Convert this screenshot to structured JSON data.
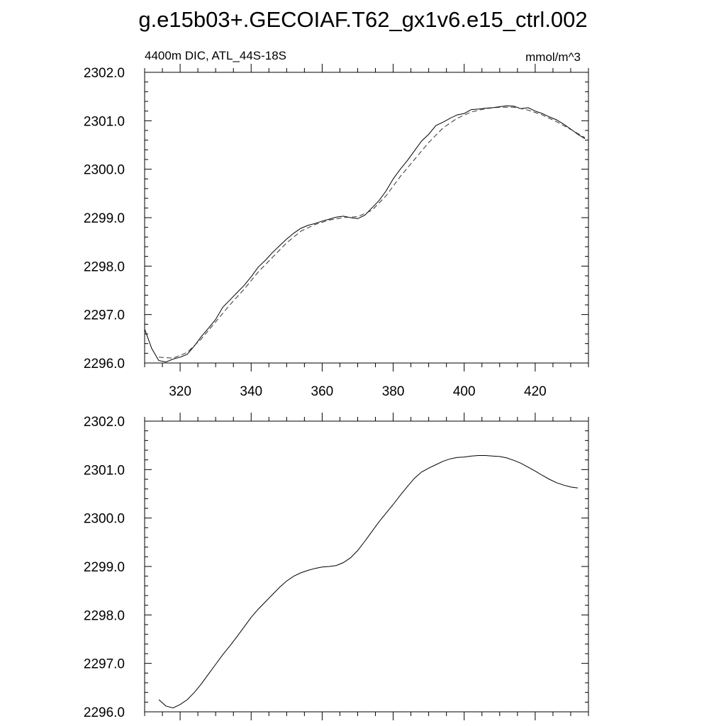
{
  "figure": {
    "title": "g.e15b03+.GECOIAF.T62_gx1v6.e15_ctrl.002"
  },
  "chart_data": [
    {
      "type": "line",
      "subtitle_left": "4400m DIC, ATL_44S-18S",
      "subtitle_right": "mmol/m^3",
      "xlim": [
        310,
        435
      ],
      "ylim": [
        2296.0,
        2302.0
      ],
      "x_ticks": [
        320,
        340,
        360,
        380,
        400,
        420
      ],
      "y_ticks": [
        "2296.0",
        "2297.0",
        "2298.0",
        "2299.0",
        "2300.0",
        "2301.0",
        "2302.0"
      ],
      "series": [
        {
          "style": "solid",
          "x": [
            310,
            312,
            314,
            316,
            318,
            320,
            322,
            324,
            326,
            328,
            330,
            332,
            334,
            336,
            338,
            340,
            342,
            344,
            346,
            348,
            350,
            352,
            354,
            356,
            358,
            360,
            362,
            364,
            366,
            368,
            370,
            372,
            374,
            376,
            378,
            380,
            382,
            384,
            386,
            388,
            390,
            392,
            394,
            396,
            398,
            400,
            402,
            404,
            406,
            408,
            410,
            412,
            414,
            416,
            418,
            420,
            422,
            424,
            426,
            428,
            430,
            432,
            434
          ],
          "y": [
            2296.7,
            2296.3,
            2296.05,
            2296.02,
            2296.08,
            2296.12,
            2296.18,
            2296.35,
            2296.55,
            2296.72,
            2296.9,
            2297.15,
            2297.3,
            2297.45,
            2297.6,
            2297.78,
            2297.98,
            2298.12,
            2298.28,
            2298.42,
            2298.56,
            2298.68,
            2298.78,
            2298.84,
            2298.88,
            2298.93,
            2298.97,
            2299.01,
            2299.03,
            2299.0,
            2298.98,
            2299.05,
            2299.2,
            2299.35,
            2299.55,
            2299.8,
            2300.0,
            2300.18,
            2300.38,
            2300.58,
            2300.72,
            2300.9,
            2300.97,
            2301.05,
            2301.12,
            2301.15,
            2301.23,
            2301.24,
            2301.26,
            2301.27,
            2301.29,
            2301.31,
            2301.3,
            2301.25,
            2301.27,
            2301.2,
            2301.15,
            2301.08,
            2301.02,
            2300.93,
            2300.83,
            2300.72,
            2300.63
          ]
        },
        {
          "style": "dashed",
          "x": [
            314,
            318,
            322,
            326,
            330,
            334,
            338,
            342,
            346,
            350,
            354,
            358,
            362,
            366,
            370,
            374,
            378,
            382,
            386,
            390,
            394,
            398,
            402,
            406,
            410,
            414,
            418,
            422,
            426,
            430,
            434
          ],
          "y": [
            2296.12,
            2296.1,
            2296.22,
            2296.5,
            2296.85,
            2297.2,
            2297.52,
            2297.88,
            2298.18,
            2298.48,
            2298.72,
            2298.86,
            2298.95,
            2299.0,
            2299.02,
            2299.15,
            2299.45,
            2299.85,
            2300.2,
            2300.55,
            2300.85,
            2301.05,
            2301.18,
            2301.25,
            2301.28,
            2301.28,
            2301.22,
            2301.12,
            2300.98,
            2300.82,
            2300.65
          ]
        }
      ]
    },
    {
      "type": "line",
      "xlim": [
        310,
        435
      ],
      "ylim": [
        2296.0,
        2302.0
      ],
      "y_ticks": [
        "2296.0",
        "2297.0",
        "2298.0",
        "2299.0",
        "2300.0",
        "2301.0",
        "2302.0"
      ],
      "series": [
        {
          "style": "solid",
          "x": [
            314,
            316,
            318,
            320,
            322,
            324,
            326,
            328,
            330,
            332,
            334,
            336,
            338,
            340,
            342,
            344,
            346,
            348,
            350,
            352,
            354,
            356,
            358,
            360,
            362,
            364,
            366,
            368,
            370,
            372,
            374,
            376,
            378,
            380,
            382,
            384,
            386,
            388,
            390,
            392,
            394,
            396,
            398,
            400,
            402,
            404,
            406,
            408,
            410,
            412,
            414,
            416,
            418,
            420,
            422,
            424,
            426,
            428,
            430,
            432
          ],
          "y": [
            2296.25,
            2296.12,
            2296.08,
            2296.15,
            2296.25,
            2296.4,
            2296.58,
            2296.78,
            2296.98,
            2297.18,
            2297.36,
            2297.55,
            2297.75,
            2297.95,
            2298.12,
            2298.27,
            2298.42,
            2298.57,
            2298.7,
            2298.8,
            2298.87,
            2298.92,
            2298.96,
            2298.99,
            2299.0,
            2299.02,
            2299.08,
            2299.18,
            2299.33,
            2299.52,
            2299.72,
            2299.92,
            2300.1,
            2300.28,
            2300.47,
            2300.65,
            2300.82,
            2300.95,
            2301.03,
            2301.1,
            2301.17,
            2301.22,
            2301.25,
            2301.26,
            2301.28,
            2301.29,
            2301.29,
            2301.28,
            2301.27,
            2301.24,
            2301.19,
            2301.13,
            2301.05,
            2300.97,
            2300.88,
            2300.8,
            2300.73,
            2300.68,
            2300.64,
            2300.62
          ]
        }
      ]
    }
  ]
}
